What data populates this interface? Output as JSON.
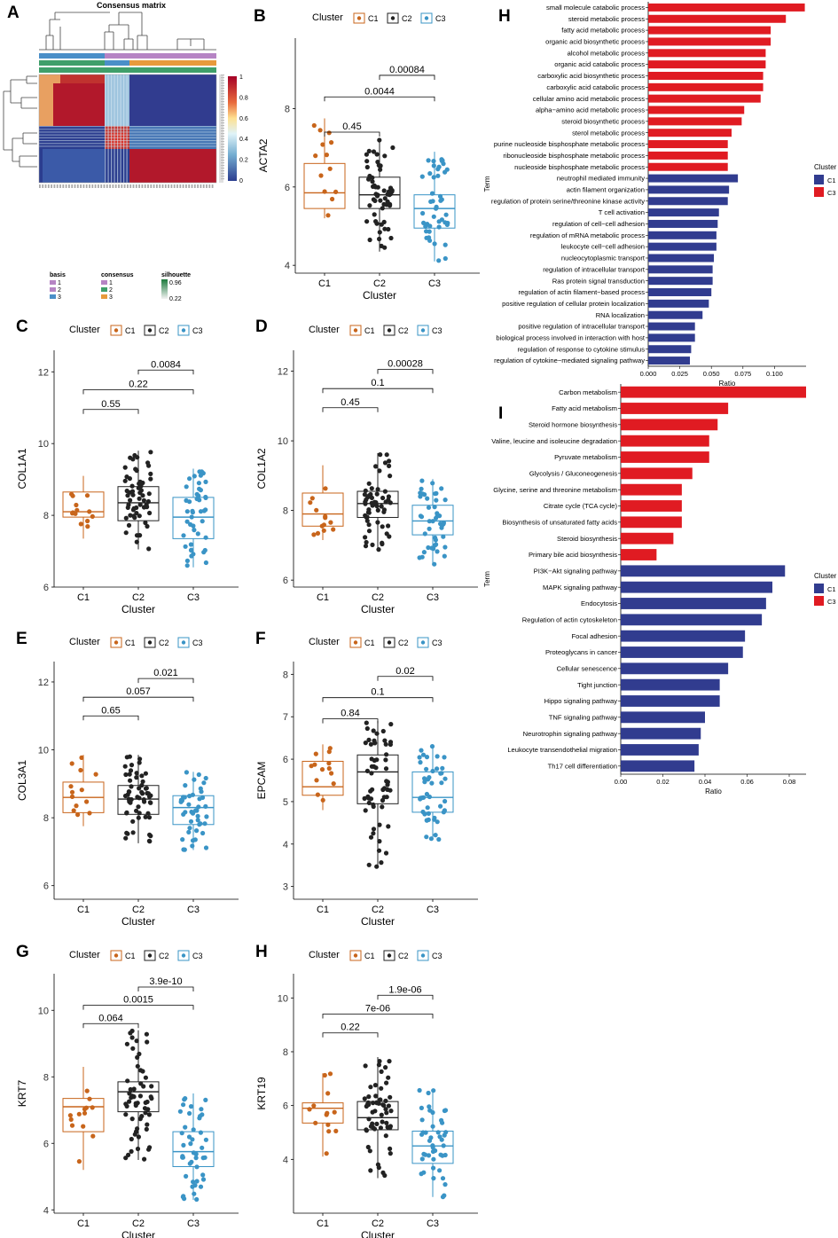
{
  "panel_labels": {
    "a": "A",
    "b": "B",
    "c": "C",
    "d": "D",
    "e": "E",
    "f": "F",
    "g": "G",
    "h_left": "H",
    "h_right": "H",
    "i": "I"
  },
  "colors": {
    "C1": "#c8651b",
    "C2": "#222222",
    "C3": "#3a94c6",
    "go_C1": "#313c8f",
    "go_C3": "#e01b22",
    "hm_high": "#b2182b",
    "hm_low": "#2b3d8f"
  },
  "heatmap": {
    "title": "Consensus matrix",
    "scale_ticks": [
      "1",
      "0.8",
      "0.6",
      "0.4",
      "0.2",
      "0"
    ],
    "legend": {
      "basis_title": "basis",
      "basis_items": [
        "1",
        "2",
        "3"
      ],
      "consensus_title": "consensus",
      "consensus_items": [
        "1",
        "2",
        "3"
      ],
      "silhouette_title": "silhouette",
      "silhouette_high": "0.96",
      "silhouette_low": "0.22"
    }
  },
  "legend_common": {
    "title": "Cluster",
    "items": [
      "C1",
      "C2",
      "C3"
    ]
  },
  "chart_data": [
    {
      "id": "b",
      "type": "box",
      "ylabel": "ACTA2",
      "xlabel": "Cluster",
      "categories": [
        "C1",
        "C2",
        "C3"
      ],
      "ylim": [
        3.8,
        9.8
      ],
      "yticks": [
        4,
        6,
        8
      ],
      "boxes": [
        {
          "q1": 5.45,
          "median": 5.85,
          "q3": 6.6,
          "lo": 5.2,
          "hi": 7.75
        },
        {
          "q1": 5.45,
          "median": 5.8,
          "q3": 6.25,
          "lo": 4.35,
          "hi": 7.2
        },
        {
          "q1": 4.95,
          "median": 5.45,
          "q3": 5.8,
          "lo": 4.1,
          "hi": 6.9
        }
      ],
      "comparisons": [
        {
          "from": 0,
          "to": 1,
          "label": "0.45",
          "y": 7.4
        },
        {
          "from": 0,
          "to": 2,
          "label": "0.0044",
          "y": 8.3
        },
        {
          "from": 1,
          "to": 2,
          "label": "0.00084",
          "y": 8.85
        }
      ]
    },
    {
      "id": "c",
      "type": "box",
      "ylabel": "COL1A1",
      "xlabel": "Cluster",
      "categories": [
        "C1",
        "C2",
        "C3"
      ],
      "ylim": [
        6,
        12.6
      ],
      "yticks": [
        6,
        8,
        10,
        12
      ],
      "boxes": [
        {
          "q1": 7.95,
          "median": 8.1,
          "q3": 8.65,
          "lo": 7.35,
          "hi": 9.1
        },
        {
          "q1": 7.85,
          "median": 8.35,
          "q3": 8.8,
          "lo": 7.05,
          "hi": 9.8
        },
        {
          "q1": 7.35,
          "median": 7.95,
          "q3": 8.5,
          "lo": 6.55,
          "hi": 9.3
        }
      ],
      "comparisons": [
        {
          "from": 0,
          "to": 1,
          "label": "0.55",
          "y": 10.95
        },
        {
          "from": 0,
          "to": 2,
          "label": "0.22",
          "y": 11.5
        },
        {
          "from": 1,
          "to": 2,
          "label": "0.0084",
          "y": 12.05
        }
      ]
    },
    {
      "id": "d",
      "type": "box",
      "ylabel": "COL1A2",
      "xlabel": "Cluster",
      "categories": [
        "C1",
        "C2",
        "C3"
      ],
      "ylim": [
        5.8,
        12.6
      ],
      "yticks": [
        6,
        8,
        10,
        12
      ],
      "boxes": [
        {
          "q1": 7.55,
          "median": 7.9,
          "q3": 8.5,
          "lo": 7.15,
          "hi": 9.3
        },
        {
          "q1": 7.8,
          "median": 8.2,
          "q3": 8.55,
          "lo": 6.85,
          "hi": 9.65
        },
        {
          "q1": 7.3,
          "median": 7.7,
          "q3": 8.15,
          "lo": 6.45,
          "hi": 8.9
        }
      ],
      "comparisons": [
        {
          "from": 0,
          "to": 1,
          "label": "0.45",
          "y": 10.95
        },
        {
          "from": 0,
          "to": 2,
          "label": "0.1",
          "y": 11.5
        },
        {
          "from": 1,
          "to": 2,
          "label": "0.00028",
          "y": 12.05
        }
      ]
    },
    {
      "id": "e",
      "type": "box",
      "ylabel": "COL3A1",
      "xlabel": "Cluster",
      "categories": [
        "C1",
        "C2",
        "C3"
      ],
      "ylim": [
        5.6,
        12.6
      ],
      "yticks": [
        6,
        8,
        10,
        12
      ],
      "boxes": [
        {
          "q1": 8.15,
          "median": 8.6,
          "q3": 9.05,
          "lo": 7.75,
          "hi": 9.85
        },
        {
          "q1": 8.1,
          "median": 8.55,
          "q3": 8.95,
          "lo": 7.25,
          "hi": 9.85
        },
        {
          "q1": 7.8,
          "median": 8.3,
          "q3": 8.65,
          "lo": 7.05,
          "hi": 9.35
        }
      ],
      "comparisons": [
        {
          "from": 0,
          "to": 1,
          "label": "0.65",
          "y": 11.0
        },
        {
          "from": 0,
          "to": 2,
          "label": "0.057",
          "y": 11.55
        },
        {
          "from": 1,
          "to": 2,
          "label": "0.021",
          "y": 12.1
        }
      ]
    },
    {
      "id": "f",
      "type": "box",
      "ylabel": "EPCAM",
      "xlabel": "Cluster",
      "categories": [
        "C1",
        "C2",
        "C3"
      ],
      "ylim": [
        2.7,
        8.3
      ],
      "yticks": [
        3,
        4,
        5,
        6,
        7,
        8
      ],
      "boxes": [
        {
          "q1": 5.15,
          "median": 5.35,
          "q3": 5.95,
          "lo": 4.8,
          "hi": 6.35
        },
        {
          "q1": 4.95,
          "median": 5.7,
          "q3": 6.1,
          "lo": 3.45,
          "hi": 6.9
        },
        {
          "q1": 4.75,
          "median": 5.1,
          "q3": 5.7,
          "lo": 4.1,
          "hi": 6.35
        }
      ],
      "comparisons": [
        {
          "from": 0,
          "to": 1,
          "label": "0.84",
          "y": 6.95
        },
        {
          "from": 0,
          "to": 2,
          "label": "0.1",
          "y": 7.45
        },
        {
          "from": 1,
          "to": 2,
          "label": "0.02",
          "y": 7.95
        }
      ]
    },
    {
      "id": "g",
      "type": "box",
      "ylabel": "KRT7",
      "xlabel": "Cluster",
      "categories": [
        "C1",
        "C2",
        "C3"
      ],
      "ylim": [
        3.9,
        11.1
      ],
      "yticks": [
        4,
        6,
        8,
        10
      ],
      "boxes": [
        {
          "q1": 6.35,
          "median": 7.1,
          "q3": 7.35,
          "lo": 5.2,
          "hi": 8.3
        },
        {
          "q1": 6.95,
          "median": 7.55,
          "q3": 7.85,
          "lo": 5.5,
          "hi": 9.4
        },
        {
          "q1": 5.3,
          "median": 5.75,
          "q3": 6.35,
          "lo": 4.3,
          "hi": 7.5
        }
      ],
      "comparisons": [
        {
          "from": 0,
          "to": 1,
          "label": "0.064",
          "y": 9.6
        },
        {
          "from": 0,
          "to": 2,
          "label": "0.0015",
          "y": 10.15
        },
        {
          "from": 1,
          "to": 2,
          "label": "3.9e-10",
          "y": 10.7
        }
      ]
    },
    {
      "id": "h_box",
      "type": "box",
      "ylabel": "KRT19",
      "xlabel": "Cluster",
      "categories": [
        "C1",
        "C2",
        "C3"
      ],
      "ylim": [
        2,
        10.9
      ],
      "yticks": [
        4,
        6,
        8,
        10
      ],
      "boxes": [
        {
          "q1": 5.35,
          "median": 5.9,
          "q3": 6.1,
          "lo": 4.1,
          "hi": 7.2
        },
        {
          "q1": 5.1,
          "median": 5.55,
          "q3": 6.15,
          "lo": 3.3,
          "hi": 7.8
        },
        {
          "q1": 3.85,
          "median": 4.5,
          "q3": 5.05,
          "lo": 2.6,
          "hi": 6.6
        }
      ],
      "comparisons": [
        {
          "from": 0,
          "to": 1,
          "label": "0.22",
          "y": 8.7
        },
        {
          "from": 0,
          "to": 2,
          "label": "7e-06",
          "y": 9.4
        },
        {
          "from": 1,
          "to": 2,
          "label": "1.9e-06",
          "y": 10.1
        }
      ]
    },
    {
      "id": "h_go",
      "type": "bar",
      "orientation": "horizontal",
      "xlabel": "Ratio",
      "ylabel": "Term",
      "xlim": [
        0,
        0.125
      ],
      "xticks": [
        "0.000",
        "0.025",
        "0.050",
        "0.075",
        "0.100"
      ],
      "xtick_values": [
        0,
        0.025,
        0.05,
        0.075,
        0.1
      ],
      "legend": {
        "title": "Cluster",
        "items": [
          "C1",
          "C3"
        ]
      },
      "categories": [
        "small molecule catabolic process",
        "steroid metabolic process",
        "fatty acid metabolic process",
        "organic acid biosynthetic process",
        "alcohol metabolic process",
        "organic acid catabolic process",
        "carboxylic acid biosynthetic process",
        "carboxylic acid catabolic process",
        "cellular amino acid metabolic process",
        "alpha−amino acid metabolic process",
        "steroid biosynthetic process",
        "sterol metabolic process",
        "purine nucleoside bisphosphate metabolic process",
        "ribonucleoside bisphosphate metabolic process",
        "nucleoside bisphosphate metabolic process",
        "neutrophil mediated immunity",
        "actin filament organization",
        "regulation of protein serine/threonine kinase activity",
        "T cell activation",
        "regulation of cell−cell adhesion",
        "regulation of mRNA metabolic process",
        "leukocyte cell−cell adhesion",
        "nucleocytoplasmic transport",
        "regulation of intracellular transport",
        "Ras protein signal transduction",
        "regulation of actin filament−based process",
        "positive regulation of cellular protein localization",
        "RNA localization",
        "positive regulation of intracellular transport",
        "biological process involved in interaction with host",
        "regulation of response to cytokine stimulus",
        "regulation of cytokine−mediated signaling pathway"
      ],
      "values": [
        0.124,
        0.109,
        0.097,
        0.097,
        0.093,
        0.093,
        0.091,
        0.091,
        0.089,
        0.076,
        0.074,
        0.066,
        0.063,
        0.063,
        0.063,
        0.071,
        0.064,
        0.063,
        0.056,
        0.055,
        0.054,
        0.054,
        0.052,
        0.051,
        0.051,
        0.05,
        0.048,
        0.043,
        0.037,
        0.037,
        0.034,
        0.033
      ],
      "groups": [
        "C3",
        "C3",
        "C3",
        "C3",
        "C3",
        "C3",
        "C3",
        "C3",
        "C3",
        "C3",
        "C3",
        "C3",
        "C3",
        "C3",
        "C3",
        "C1",
        "C1",
        "C1",
        "C1",
        "C1",
        "C1",
        "C1",
        "C1",
        "C1",
        "C1",
        "C1",
        "C1",
        "C1",
        "C1",
        "C1",
        "C1",
        "C1"
      ]
    },
    {
      "id": "i_kegg",
      "type": "bar",
      "orientation": "horizontal",
      "xlabel": "Ratio",
      "ylabel": "Term",
      "xlim": [
        0,
        0.088
      ],
      "xticks": [
        "0.00",
        "0.02",
        "0.04",
        "0.06",
        "0.08"
      ],
      "xtick_values": [
        0,
        0.02,
        0.04,
        0.06,
        0.08
      ],
      "legend": {
        "title": "Cluster",
        "items": [
          "C1",
          "C3"
        ]
      },
      "categories": [
        "Carbon metabolism",
        "Fatty acid metabolism",
        "Steroid hormone biosynthesis",
        "Valine, leucine and isoleucine degradation",
        "Pyruvate metabolism",
        "Glycolysis / Gluconeogenesis",
        "Glycine, serine and threonine metabolism",
        "Citrate cycle (TCA cycle)",
        "Biosynthesis of unsaturated fatty acids",
        "Steroid biosynthesis",
        "Primary bile acid biosynthesis",
        "PI3K−Akt signaling pathway",
        "MAPK signaling pathway",
        "Endocytosis",
        "Regulation of actin cytoskeleton",
        "Focal adhesion",
        "Proteoglycans in cancer",
        "Cellular senescence",
        "Tight junction",
        "Hippo signaling pathway",
        "TNF signaling pathway",
        "Neurotrophin signaling pathway",
        "Leukocyte transendothelial migration",
        "Th17 cell differentiation"
      ],
      "values": [
        0.088,
        0.051,
        0.046,
        0.042,
        0.042,
        0.034,
        0.029,
        0.029,
        0.029,
        0.025,
        0.017,
        0.078,
        0.072,
        0.069,
        0.067,
        0.059,
        0.058,
        0.051,
        0.047,
        0.047,
        0.04,
        0.038,
        0.037,
        0.035
      ],
      "groups": [
        "C3",
        "C3",
        "C3",
        "C3",
        "C3",
        "C3",
        "C3",
        "C3",
        "C3",
        "C3",
        "C3",
        "C1",
        "C1",
        "C1",
        "C1",
        "C1",
        "C1",
        "C1",
        "C1",
        "C1",
        "C1",
        "C1",
        "C1",
        "C1"
      ]
    }
  ]
}
